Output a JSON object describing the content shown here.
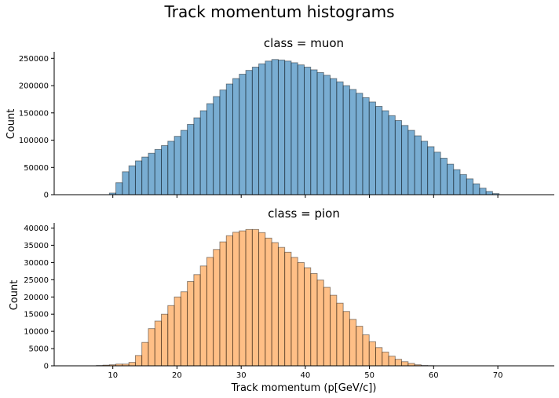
{
  "suptitle": "Track momentum histograms",
  "chart_data": [
    {
      "type": "bar",
      "title": "class = muon",
      "xlabel": "",
      "ylabel": "Count",
      "xlim": [
        1.5,
        78.5
      ],
      "ylim": [
        0,
        262000
      ],
      "xticks": [
        10,
        20,
        30,
        40,
        50,
        60,
        70
      ],
      "yticks": [
        0,
        50000,
        100000,
        150000,
        200000,
        250000
      ],
      "color": "#1f77b4",
      "bin_edges_start": 5,
      "bin_width": 1,
      "values": [
        0,
        0,
        0,
        0,
        0,
        3000,
        22000,
        42000,
        53000,
        62000,
        69000,
        76000,
        83000,
        90000,
        98000,
        107000,
        118000,
        129000,
        141000,
        154000,
        167000,
        180000,
        192000,
        203000,
        213000,
        221000,
        228000,
        234000,
        240000,
        245000,
        248000,
        247000,
        245000,
        242000,
        238000,
        234000,
        229000,
        224000,
        219000,
        213000,
        207000,
        200000,
        193000,
        186000,
        178000,
        170000,
        162000,
        154000,
        145000,
        136000,
        127000,
        118000,
        108000,
        98000,
        88000,
        78000,
        67000,
        56000,
        46000,
        37000,
        29000,
        20000,
        12000,
        6000,
        2000,
        0,
        0,
        0,
        0,
        0
      ]
    },
    {
      "type": "bar",
      "title": "class = pion",
      "xlabel": "Track momentum (p[GeV/c])",
      "ylabel": "Count",
      "xlim": [
        1.5,
        78.5
      ],
      "ylim": [
        0,
        41500
      ],
      "xticks": [
        10,
        20,
        30,
        40,
        50,
        60,
        70
      ],
      "yticks": [
        0,
        5000,
        10000,
        15000,
        20000,
        25000,
        30000,
        35000,
        40000
      ],
      "color": "#ff7f0e",
      "bin_edges_start": 5,
      "bin_width": 1,
      "values": [
        0,
        0,
        0,
        100,
        200,
        300,
        500,
        500,
        1000,
        3000,
        6800,
        10800,
        13000,
        15000,
        17500,
        20000,
        21500,
        24500,
        26500,
        29000,
        31500,
        33800,
        36000,
        37800,
        38800,
        39200,
        39600,
        39600,
        38700,
        37100,
        35800,
        34400,
        33000,
        31500,
        30000,
        28500,
        26800,
        24900,
        22800,
        20500,
        18200,
        15800,
        13500,
        11500,
        9000,
        7000,
        5300,
        4000,
        2800,
        1900,
        1200,
        700,
        300,
        100,
        50,
        0,
        0,
        0,
        0,
        0,
        0,
        0,
        0,
        0,
        0,
        0,
        0,
        0,
        0,
        0
      ]
    }
  ],
  "x_tick_labels": [
    "10",
    "20",
    "30",
    "40",
    "50",
    "60",
    "70"
  ],
  "muon_y_tick_labels": [
    "0",
    "50000",
    "100000",
    "150000",
    "200000",
    "250000"
  ],
  "pion_y_tick_labels": [
    "0",
    "5000",
    "10000",
    "15000",
    "20000",
    "25000",
    "30000",
    "35000",
    "40000"
  ]
}
